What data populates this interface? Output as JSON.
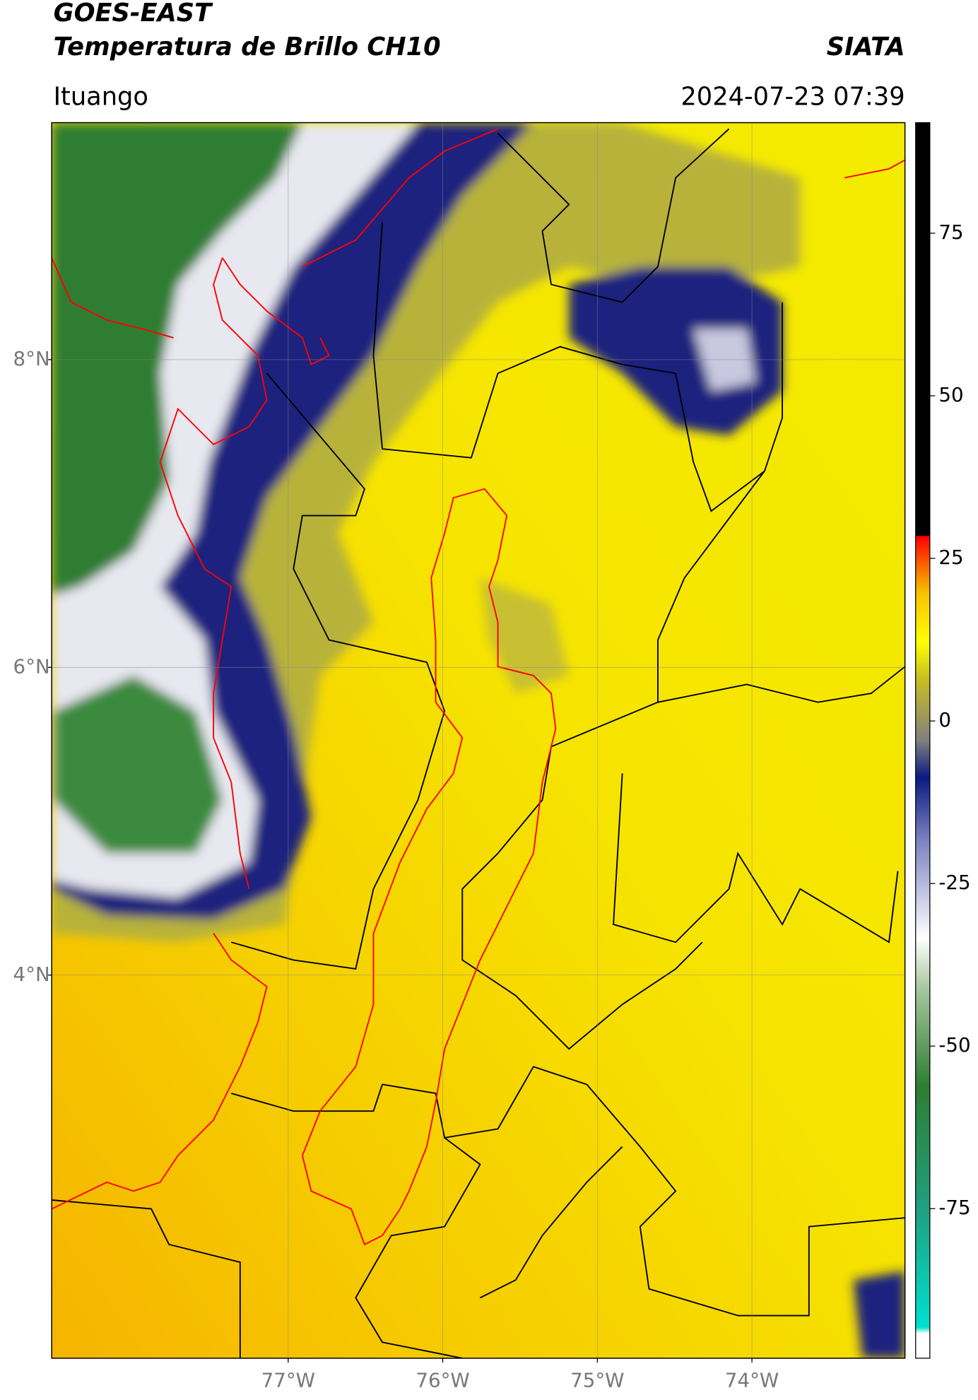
{
  "header": {
    "title": "GOES-EAST",
    "subtitle": "Temperatura de Brillo CH10",
    "source": "SIATA",
    "location": "Ituango",
    "datetime": "2024-07-23 07:39"
  },
  "map": {
    "xlim": [
      -78.53,
      -73.01
    ],
    "ylim": [
      1.51,
      9.54
    ],
    "xticks": [
      {
        "value": -77,
        "label": "77°W"
      },
      {
        "value": -76,
        "label": "76°W"
      },
      {
        "value": -75,
        "label": "75°W"
      },
      {
        "value": -74,
        "label": "74°W"
      }
    ],
    "yticks": [
      {
        "value": 8,
        "label": "8°N"
      },
      {
        "value": 6,
        "label": "6°N"
      },
      {
        "value": 4,
        "label": "4°N"
      }
    ],
    "grid": true
  },
  "colorbar": {
    "lim": [
      -98,
      92
    ],
    "ticks": [
      75,
      50,
      25,
      0,
      -25,
      -50,
      -75
    ]
  }
}
